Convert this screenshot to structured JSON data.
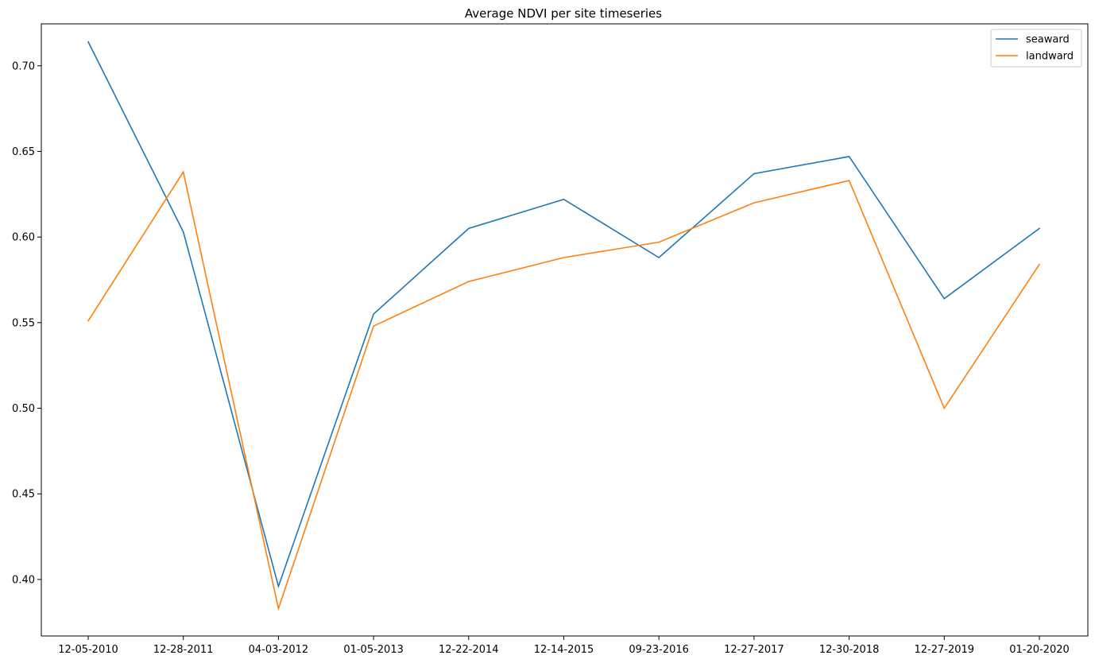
{
  "chart_data": {
    "type": "line",
    "title": "Average NDVI per site timeseries",
    "xlabel": "",
    "ylabel": "",
    "categories": [
      "12-05-2010",
      "12-28-2011",
      "04-03-2012",
      "01-05-2013",
      "12-22-2014",
      "12-14-2015",
      "09-23-2016",
      "12-27-2017",
      "12-30-2018",
      "12-27-2019",
      "01-20-2020"
    ],
    "series": [
      {
        "name": "seaward",
        "color": "#1f77b4",
        "values": [
          0.714,
          0.603,
          0.396,
          0.555,
          0.605,
          0.622,
          0.588,
          0.637,
          0.647,
          0.564,
          0.605
        ]
      },
      {
        "name": "landward",
        "color": "#ff7f0e",
        "values": [
          0.551,
          0.638,
          0.383,
          0.548,
          0.574,
          0.588,
          0.597,
          0.62,
          0.633,
          0.5,
          0.584
        ]
      }
    ],
    "ylim": [
      0.367,
      0.7245
    ],
    "yticks": [
      0.4,
      0.45,
      0.5,
      0.55,
      0.6,
      0.65,
      0.7
    ],
    "ytick_labels": [
      "0.40",
      "0.45",
      "0.50",
      "0.55",
      "0.60",
      "0.65",
      "0.70"
    ],
    "grid": false,
    "legend_position": "upper right"
  }
}
